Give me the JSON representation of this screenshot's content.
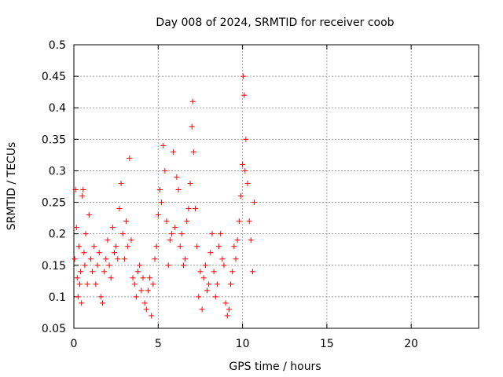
{
  "chart_data": {
    "type": "scatter",
    "title": "Day 008 of 2024, SRMTID for receiver coob",
    "xlabel": "GPS time / hours",
    "ylabel": "SRMTID / TECUs",
    "xlim": [
      0,
      24
    ],
    "ylim": [
      0.05,
      0.5
    ],
    "x_ticks": [
      0,
      5,
      10,
      15,
      20
    ],
    "y_ticks": [
      0.05,
      0.1,
      0.15,
      0.2,
      0.25,
      0.3,
      0.35,
      0.4,
      0.45,
      0.5
    ],
    "x_tick_labels": [
      "0",
      "5",
      "10",
      "15",
      "20"
    ],
    "y_tick_labels": [
      "0.05",
      "0.1",
      "0.15",
      "0.2",
      "0.25",
      "0.3",
      "0.35",
      "0.4",
      "0.45",
      "0.5"
    ],
    "grid": true,
    "marker": "+",
    "color": "#ff0000",
    "series": [
      {
        "name": "SRMTID",
        "points": [
          [
            0.05,
            0.16
          ],
          [
            0.1,
            0.27
          ],
          [
            0.15,
            0.21
          ],
          [
            0.2,
            0.13
          ],
          [
            0.25,
            0.1
          ],
          [
            0.3,
            0.18
          ],
          [
            0.35,
            0.12
          ],
          [
            0.4,
            0.14
          ],
          [
            0.45,
            0.09
          ],
          [
            0.5,
            0.26
          ],
          [
            0.55,
            0.27
          ],
          [
            0.6,
            0.17
          ],
          [
            0.65,
            0.15
          ],
          [
            0.7,
            0.2
          ],
          [
            0.8,
            0.12
          ],
          [
            0.9,
            0.23
          ],
          [
            1.0,
            0.16
          ],
          [
            1.1,
            0.14
          ],
          [
            1.2,
            0.18
          ],
          [
            1.3,
            0.12
          ],
          [
            1.4,
            0.15
          ],
          [
            1.5,
            0.17
          ],
          [
            1.6,
            0.1
          ],
          [
            1.7,
            0.09
          ],
          [
            1.8,
            0.14
          ],
          [
            1.9,
            0.16
          ],
          [
            2.0,
            0.19
          ],
          [
            2.1,
            0.15
          ],
          [
            2.2,
            0.13
          ],
          [
            2.3,
            0.21
          ],
          [
            2.4,
            0.17
          ],
          [
            2.5,
            0.18
          ],
          [
            2.6,
            0.16
          ],
          [
            2.7,
            0.24
          ],
          [
            2.8,
            0.28
          ],
          [
            2.9,
            0.2
          ],
          [
            3.0,
            0.16
          ],
          [
            3.1,
            0.22
          ],
          [
            3.2,
            0.18
          ],
          [
            3.3,
            0.32
          ],
          [
            3.4,
            0.19
          ],
          [
            3.5,
            0.13
          ],
          [
            3.6,
            0.12
          ],
          [
            3.7,
            0.1
          ],
          [
            3.8,
            0.14
          ],
          [
            3.9,
            0.15
          ],
          [
            4.0,
            0.11
          ],
          [
            4.1,
            0.13
          ],
          [
            4.2,
            0.09
          ],
          [
            4.3,
            0.08
          ],
          [
            4.4,
            0.11
          ],
          [
            4.5,
            0.13
          ],
          [
            4.6,
            0.07
          ],
          [
            4.7,
            0.12
          ],
          [
            4.8,
            0.16
          ],
          [
            4.9,
            0.18
          ],
          [
            5.0,
            0.23
          ],
          [
            5.1,
            0.27
          ],
          [
            5.2,
            0.25
          ],
          [
            5.3,
            0.34
          ],
          [
            5.4,
            0.3
          ],
          [
            5.5,
            0.22
          ],
          [
            5.6,
            0.15
          ],
          [
            5.7,
            0.19
          ],
          [
            5.8,
            0.2
          ],
          [
            5.9,
            0.33
          ],
          [
            6.0,
            0.21
          ],
          [
            6.1,
            0.29
          ],
          [
            6.2,
            0.27
          ],
          [
            6.3,
            0.18
          ],
          [
            6.4,
            0.2
          ],
          [
            6.5,
            0.15
          ],
          [
            6.6,
            0.16
          ],
          [
            6.7,
            0.22
          ],
          [
            6.8,
            0.24
          ],
          [
            6.9,
            0.28
          ],
          [
            7.0,
            0.37
          ],
          [
            7.05,
            0.41
          ],
          [
            7.1,
            0.33
          ],
          [
            7.2,
            0.24
          ],
          [
            7.3,
            0.18
          ],
          [
            7.4,
            0.1
          ],
          [
            7.5,
            0.14
          ],
          [
            7.6,
            0.08
          ],
          [
            7.7,
            0.13
          ],
          [
            7.8,
            0.15
          ],
          [
            7.9,
            0.11
          ],
          [
            8.0,
            0.12
          ],
          [
            8.1,
            0.17
          ],
          [
            8.2,
            0.2
          ],
          [
            8.3,
            0.14
          ],
          [
            8.4,
            0.1
          ],
          [
            8.5,
            0.12
          ],
          [
            8.6,
            0.18
          ],
          [
            8.7,
            0.2
          ],
          [
            8.8,
            0.16
          ],
          [
            8.9,
            0.15
          ],
          [
            9.0,
            0.09
          ],
          [
            9.1,
            0.07
          ],
          [
            9.2,
            0.08
          ],
          [
            9.3,
            0.12
          ],
          [
            9.4,
            0.14
          ],
          [
            9.5,
            0.18
          ],
          [
            9.6,
            0.16
          ],
          [
            9.7,
            0.19
          ],
          [
            9.8,
            0.22
          ],
          [
            9.9,
            0.26
          ],
          [
            10.0,
            0.31
          ],
          [
            10.05,
            0.45
          ],
          [
            10.1,
            0.42
          ],
          [
            10.15,
            0.3
          ],
          [
            10.2,
            0.35
          ],
          [
            10.3,
            0.28
          ],
          [
            10.4,
            0.22
          ],
          [
            10.5,
            0.19
          ],
          [
            10.6,
            0.14
          ],
          [
            10.7,
            0.25
          ]
        ]
      }
    ]
  }
}
